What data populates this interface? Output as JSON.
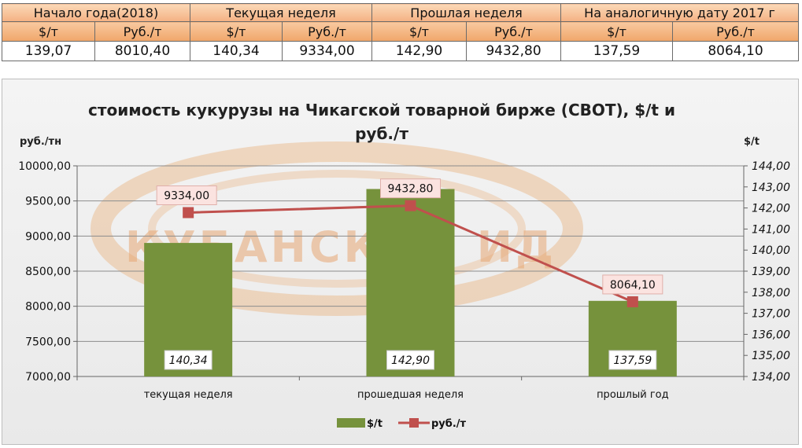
{
  "table": {
    "groups": [
      "Начало года(2018)",
      "Текущая неделя",
      "Прошлая неделя",
      "На аналогичную дату 2017 г"
    ],
    "units": [
      "$/т",
      "Руб./т",
      "$/т",
      "Руб./т",
      "$/т",
      "Руб./т",
      "$/т",
      "Руб./т"
    ],
    "values": [
      "139,07",
      "8010,40",
      "140,34",
      "9334,00",
      "142,90",
      "9432,80",
      "137,59",
      "8064,10"
    ]
  },
  "watermark": "КУБАНСКИЙ ИД",
  "chart_data": {
    "type": "bar",
    "title": "стоимость кукурузы на Чикагской товарной бирже (СВОТ), $/t и руб./т",
    "title_lines": [
      "стоимость кукурузы на Чикагской товарной бирже (СВОТ), $/t и",
      "руб./т"
    ],
    "y_left_label": "руб./тн",
    "y_right_label": "$/t",
    "categories": [
      "текущая неделя",
      "прошедшая неделя",
      "прошлый год"
    ],
    "y_left_range": [
      7000,
      10000
    ],
    "y_left_ticks": [
      "7000,00",
      "7500,00",
      "8000,00",
      "8500,00",
      "9000,00",
      "9500,00",
      "10000,00"
    ],
    "y_right_range": [
      134,
      144
    ],
    "y_right_ticks": [
      "134,00",
      "135,00",
      "136,00",
      "137,00",
      "138,00",
      "139,00",
      "140,00",
      "141,00",
      "142,00",
      "143,00",
      "144,00"
    ],
    "grid": true,
    "legend_position": "bottom",
    "series": [
      {
        "name": "$/t",
        "type": "bar",
        "axis": "right",
        "color": "#76923c",
        "values": [
          140.34,
          142.9,
          137.59
        ],
        "labels": [
          "140,34",
          "142,90",
          "137,59"
        ]
      },
      {
        "name": "руб./т",
        "type": "line",
        "axis": "left",
        "color": "#c0504d",
        "values": [
          9334.0,
          9432.8,
          8064.1
        ],
        "labels": [
          "9334,00",
          "9432,80",
          "8064,10"
        ]
      }
    ]
  }
}
